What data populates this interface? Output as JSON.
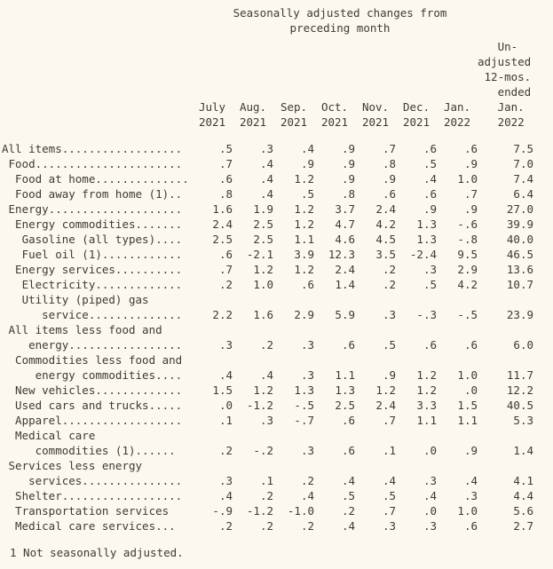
{
  "page": {
    "background": "#fcf7ef",
    "text_color": "#3e3a35"
  },
  "title": {
    "line1": "Seasonally adjusted changes from",
    "line2": "preceding month"
  },
  "header": {
    "months": [
      "July\n2021",
      "Aug.\n2021",
      "Sep.\n2021",
      "Oct.\n2021",
      "Nov.\n2021",
      "Dec.\n2021",
      "Jan.\n2022"
    ],
    "unadjusted": "   Un-\nadjusted\n 12-mos.\n   ended\n   Jan.\n   2022"
  },
  "rows": [
    {
      "label": "All items..................",
      "values": [
        ".5",
        ".3",
        ".4",
        ".9",
        ".7",
        ".6",
        ".6",
        "7.5"
      ]
    },
    {
      "label": " Food......................",
      "values": [
        ".7",
        ".4",
        ".9",
        ".9",
        ".8",
        ".5",
        ".9",
        "7.0"
      ]
    },
    {
      "label": "  Food at home..............",
      "values": [
        ".6",
        ".4",
        "1.2",
        ".9",
        ".9",
        ".4",
        "1.0",
        "7.4"
      ]
    },
    {
      "label": "  Food away from home (1)..",
      "values": [
        ".8",
        ".4",
        ".5",
        ".8",
        ".6",
        ".6",
        ".7",
        "6.4"
      ]
    },
    {
      "label": " Energy....................",
      "values": [
        "1.6",
        "1.9",
        "1.2",
        "3.7",
        "2.4",
        ".9",
        ".9",
        "27.0"
      ]
    },
    {
      "label": "  Energy commodities.......",
      "values": [
        "2.4",
        "2.5",
        "1.2",
        "4.7",
        "4.2",
        "1.3",
        "-.6",
        "39.9"
      ]
    },
    {
      "label": "   Gasoline (all types)....",
      "values": [
        "2.5",
        "2.5",
        "1.1",
        "4.6",
        "4.5",
        "1.3",
        "-.8",
        "40.0"
      ]
    },
    {
      "label": "   Fuel oil (1)............",
      "values": [
        ".6",
        "-2.1",
        "3.9",
        "12.3",
        "3.5",
        "-2.4",
        "9.5",
        "46.5"
      ]
    },
    {
      "label": "  Energy services..........",
      "values": [
        ".7",
        "1.2",
        "1.2",
        "2.4",
        ".2",
        ".3",
        "2.9",
        "13.6"
      ]
    },
    {
      "label": "   Electricity.............",
      "values": [
        ".2",
        "1.0",
        ".6",
        "1.4",
        ".2",
        ".5",
        "4.2",
        "10.7"
      ]
    },
    {
      "label": "   Utility (piped) gas\n      service..............",
      "values": [
        "2.2",
        "1.6",
        "2.9",
        "5.9",
        ".3",
        "-.3",
        "-.5",
        "23.9"
      ]
    },
    {
      "label": " All items less food and\n    energy.................",
      "values": [
        ".3",
        ".2",
        ".3",
        ".6",
        ".5",
        ".6",
        ".6",
        "6.0"
      ]
    },
    {
      "label": "  Commodities less food and\n     energy commodities....",
      "values": [
        ".4",
        ".4",
        ".3",
        "1.1",
        ".9",
        "1.2",
        "1.0",
        "11.7"
      ]
    },
    {
      "label": "  New vehicles.............",
      "values": [
        "1.5",
        "1.2",
        "1.3",
        "1.3",
        "1.2",
        "1.2",
        ".0",
        "12.2"
      ]
    },
    {
      "label": "  Used cars and trucks.....",
      "values": [
        ".0",
        "-1.2",
        "-.5",
        "2.5",
        "2.4",
        "3.3",
        "1.5",
        "40.5"
      ]
    },
    {
      "label": "  Apparel..................",
      "values": [
        ".1",
        ".3",
        "-.7",
        ".6",
        ".7",
        "1.1",
        "1.1",
        "5.3"
      ]
    },
    {
      "label": "  Medical care\n     commodities (1)......",
      "values": [
        ".2",
        "-.2",
        ".3",
        ".6",
        ".1",
        ".0",
        ".9",
        "1.4"
      ]
    },
    {
      "label": " Services less energy\n    services...............",
      "values": [
        ".3",
        ".1",
        ".2",
        ".4",
        ".4",
        ".3",
        ".4",
        "4.1"
      ]
    },
    {
      "label": "  Shelter..................",
      "values": [
        ".4",
        ".2",
        ".4",
        ".5",
        ".5",
        ".4",
        ".3",
        "4.4"
      ]
    },
    {
      "label": "  Transportation services",
      "values": [
        "-.9",
        "-1.2",
        "-1.0",
        ".2",
        ".7",
        ".0",
        "1.0",
        "5.6"
      ]
    },
    {
      "label": "  Medical care services...",
      "values": [
        ".2",
        ".2",
        ".2",
        ".4",
        ".3",
        ".3",
        ".6",
        "2.7"
      ]
    }
  ],
  "footnote": "1 Not seasonally adjusted."
}
